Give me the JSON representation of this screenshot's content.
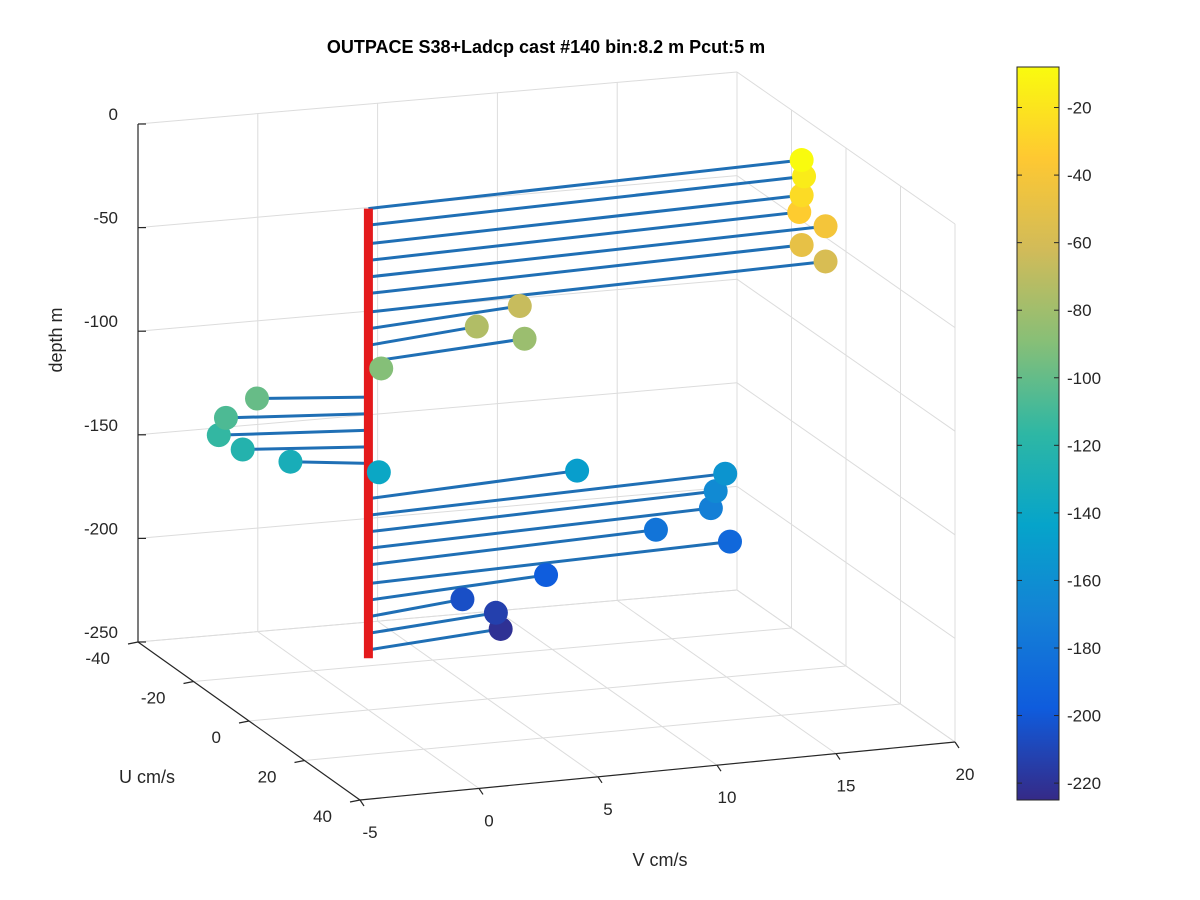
{
  "chart_data": {
    "type": "scatter",
    "title": "OUTPACE S38+Ladcp cast #140 bin:8.2 m  Pcut:5 m",
    "xlabel": "V cm/s",
    "ylabel": "U cm/s",
    "zlabel": "depth m",
    "xlim": [
      -5,
      20
    ],
    "ylim": [
      -40,
      40
    ],
    "zlim": [
      -250,
      0
    ],
    "x_ticks": [
      "-5",
      "0",
      "5",
      "10",
      "15",
      "20"
    ],
    "y_ticks": [
      "-40",
      "-20",
      "0",
      "20",
      "40"
    ],
    "z_ticks": [
      "0",
      "-50",
      "-100",
      "-150",
      "-200",
      "-250"
    ],
    "grid": true,
    "colorbar": {
      "limits": [
        -225,
        -8
      ],
      "ticks": [
        "-20",
        "-40",
        "-60",
        "-80",
        "-100",
        "-120",
        "-140",
        "-160",
        "-180",
        "-200",
        "-220"
      ],
      "colormap": "parula",
      "colors": [
        "#352A87",
        "#0F5CDD",
        "#1481D6",
        "#06A4CA",
        "#2EB7A4",
        "#87BF77",
        "#D1BB59",
        "#FEC832",
        "#F9FB0E"
      ]
    },
    "reference_line": {
      "color": "#E41A1C",
      "depth_range": [
        -225,
        -8
      ]
    },
    "stick_color": "#1F6FB5",
    "series": [
      {
        "depth": [
          -8,
          -16,
          -25,
          -33,
          -41,
          -49,
          -58,
          -66,
          -74,
          -82,
          -90,
          -99,
          -107,
          -115,
          -123,
          -131,
          -140,
          -148,
          -156,
          -164,
          -172,
          -180,
          -189,
          -197,
          -205,
          -213,
          -221
        ],
        "V": [
          18.6,
          18.7,
          18.6,
          18.5,
          19.6,
          18.6,
          19.6,
          6.8,
          5.0,
          7.0,
          1.0,
          -4.2,
          -5.5,
          -5.8,
          -4.8,
          -2.8,
          0.9,
          9.2,
          15.4,
          15.0,
          14.8,
          12.5,
          15.6,
          7.9,
          4.4,
          5.8,
          6.0
        ],
        "U": [
          -4,
          -4,
          -4,
          -4,
          -4,
          -4,
          -4,
          -4,
          -4,
          -4,
          -4,
          -4,
          -4,
          -4,
          -4,
          -4,
          -4,
          -4,
          -4,
          -4,
          -4,
          -4,
          -4,
          -4,
          -4,
          -4,
          -4
        ]
      }
    ]
  }
}
